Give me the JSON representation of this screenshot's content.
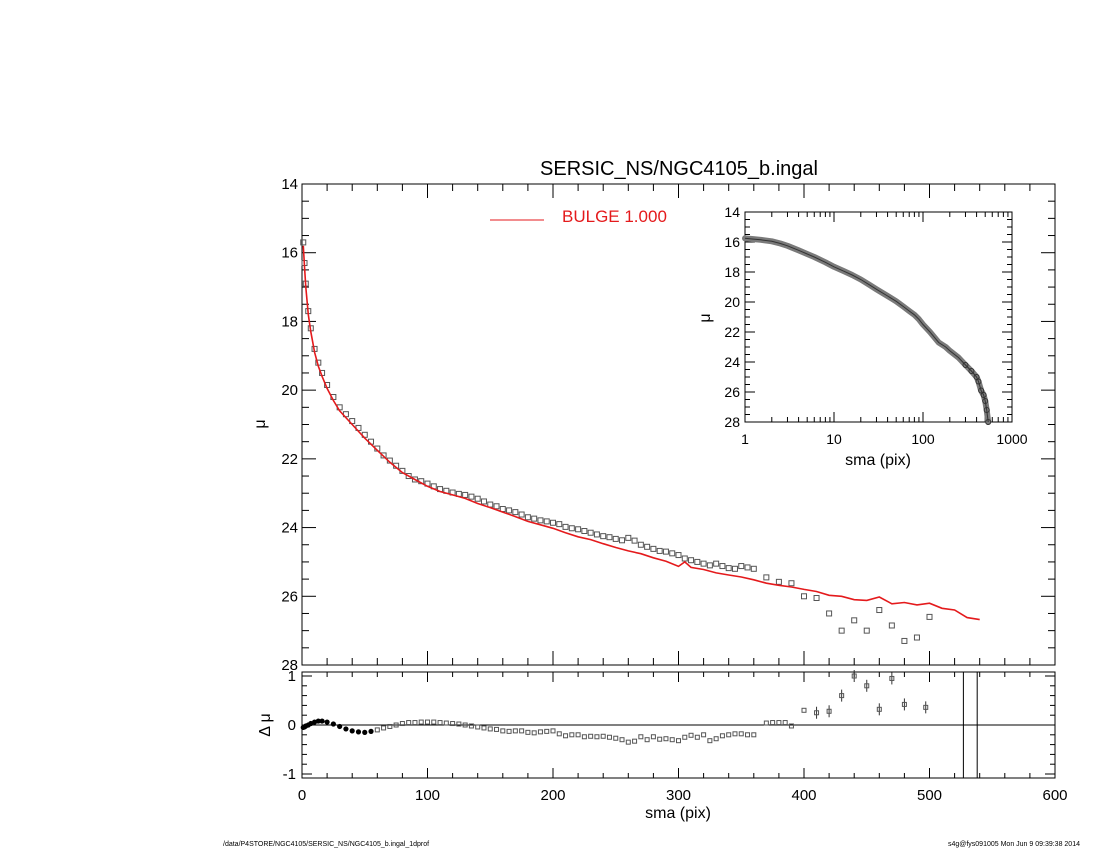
{
  "colors": {
    "model": "#e41a1c",
    "points": "#555555",
    "axes": "#000000"
  },
  "chart_data": [
    {
      "panel": "main",
      "type": "scatter",
      "title": "SERSIC_NS/NGC4105_b.ingal",
      "ylabel": "μ",
      "xlim": [
        0,
        600
      ],
      "ylim": [
        28,
        14
      ],
      "y_inverted": true,
      "yticks": [
        14,
        16,
        18,
        20,
        22,
        24,
        26,
        28
      ],
      "legend": {
        "label": "BULGE  1.000",
        "placement": "top-center"
      },
      "series": [
        {
          "name": "BULGE  1.000",
          "kind": "line",
          "x": [
            1,
            2,
            3,
            5,
            7,
            10,
            13,
            16,
            20,
            25,
            30,
            40,
            50,
            60,
            70,
            80,
            90,
            100,
            110,
            120,
            130,
            140,
            150,
            160,
            170,
            180,
            190,
            200,
            210,
            220,
            230,
            240,
            250,
            260,
            270,
            280,
            290,
            300,
            305,
            310,
            320,
            330,
            340,
            350,
            360,
            370,
            380,
            390,
            400,
            410,
            420,
            430,
            440,
            450,
            460,
            470,
            480,
            490,
            500,
            510,
            520,
            530,
            540
          ],
          "y": [
            15.8,
            16.4,
            17.0,
            17.8,
            18.3,
            18.9,
            19.3,
            19.6,
            19.95,
            20.3,
            20.6,
            21.0,
            21.4,
            21.75,
            22.1,
            22.4,
            22.6,
            22.8,
            22.95,
            23.05,
            23.15,
            23.3,
            23.42,
            23.55,
            23.68,
            23.82,
            23.92,
            24.02,
            24.15,
            24.27,
            24.35,
            24.47,
            24.58,
            24.68,
            24.76,
            24.88,
            24.98,
            25.13,
            25.0,
            25.16,
            25.22,
            25.32,
            25.38,
            25.44,
            25.52,
            25.62,
            25.68,
            25.73,
            25.8,
            25.86,
            25.97,
            26.0,
            26.1,
            26.12,
            26.02,
            26.22,
            26.18,
            26.25,
            26.2,
            26.35,
            26.4,
            26.62,
            26.68
          ]
        },
        {
          "name": "data",
          "kind": "points",
          "x": [
            1,
            2,
            3,
            5,
            7,
            10,
            13,
            16,
            20,
            25,
            30,
            35,
            40,
            45,
            50,
            55,
            60,
            65,
            70,
            75,
            80,
            85,
            90,
            95,
            100,
            105,
            110,
            115,
            120,
            125,
            130,
            135,
            140,
            145,
            150,
            155,
            160,
            165,
            170,
            175,
            180,
            185,
            190,
            195,
            200,
            205,
            210,
            215,
            220,
            225,
            230,
            235,
            240,
            245,
            250,
            255,
            260,
            265,
            270,
            275,
            280,
            285,
            290,
            295,
            300,
            305,
            310,
            315,
            320,
            325,
            330,
            335,
            340,
            345,
            350,
            355,
            360,
            370,
            380,
            390,
            400,
            410,
            420,
            430,
            440,
            450,
            460,
            470,
            480,
            490,
            500,
            510,
            520
          ],
          "y": [
            15.7,
            16.3,
            16.9,
            17.7,
            18.2,
            18.8,
            19.2,
            19.5,
            19.85,
            20.2,
            20.5,
            20.7,
            20.9,
            21.1,
            21.3,
            21.5,
            21.7,
            21.9,
            22.05,
            22.2,
            22.35,
            22.5,
            22.6,
            22.65,
            22.72,
            22.8,
            22.88,
            22.93,
            22.98,
            23.02,
            23.05,
            23.1,
            23.16,
            23.24,
            23.33,
            23.38,
            23.46,
            23.5,
            23.55,
            23.62,
            23.7,
            23.74,
            23.79,
            23.82,
            23.86,
            23.9,
            23.98,
            24.02,
            24.05,
            24.1,
            24.15,
            24.2,
            24.25,
            24.28,
            24.33,
            24.37,
            24.3,
            24.38,
            24.5,
            24.56,
            24.62,
            24.68,
            24.7,
            24.75,
            24.8,
            24.9,
            24.95,
            25.0,
            25.05,
            25.1,
            25.05,
            25.12,
            25.18,
            25.2,
            25.12,
            25.16,
            25.2,
            25.45,
            25.58,
            25.62,
            26.0,
            26.05,
            26.5,
            27.0,
            26.7,
            27.0,
            26.4,
            26.85,
            27.3,
            27.2,
            26.6,
            28.1,
            28.5
          ]
        }
      ]
    },
    {
      "panel": "inset",
      "type": "scatter",
      "xlabel": "sma (pix)",
      "ylabel": "μ",
      "x_scale": "log",
      "xlim": [
        1,
        1000
      ],
      "ylim": [
        28,
        14
      ],
      "y_inverted": true,
      "xticks": [
        1,
        10,
        100,
        1000
      ],
      "yticks": [
        14,
        16,
        18,
        20,
        22,
        24,
        26,
        28
      ],
      "series": [
        {
          "name": "data",
          "kind": "points",
          "x": [
            1,
            1.2,
            1.5,
            2,
            2.5,
            3,
            4,
            5,
            6,
            8,
            10,
            13,
            16,
            20,
            25,
            30,
            40,
            50,
            60,
            70,
            80,
            90,
            100,
            120,
            150,
            180,
            200,
            250,
            300,
            350,
            400,
            420,
            450,
            480,
            500,
            520,
            540
          ],
          "y": [
            15.75,
            15.8,
            15.85,
            15.95,
            16.1,
            16.25,
            16.55,
            16.8,
            17.0,
            17.35,
            17.65,
            17.95,
            18.2,
            18.5,
            18.85,
            19.15,
            19.6,
            19.95,
            20.3,
            20.6,
            20.85,
            21.15,
            21.5,
            22.0,
            22.7,
            23.0,
            23.25,
            23.7,
            24.2,
            24.6,
            25.0,
            25.3,
            25.9,
            26.2,
            26.6,
            27.2,
            28.0
          ]
        }
      ]
    },
    {
      "panel": "residual",
      "type": "scatter",
      "xlabel": "sma (pix)",
      "ylabel": "Δ μ",
      "xlim": [
        0,
        600
      ],
      "ylim": [
        -1,
        1
      ],
      "yticks": [
        -1,
        0,
        1
      ],
      "xticks": [
        0,
        100,
        200,
        300,
        400,
        500,
        600
      ],
      "reference_line_y": 0,
      "vertical_lines_x": [
        527,
        538
      ],
      "series": [
        {
          "name": "residual",
          "kind": "points",
          "x": [
            1,
            2,
            3,
            5,
            7,
            10,
            13,
            16,
            20,
            25,
            30,
            35,
            40,
            45,
            50,
            55,
            60,
            65,
            70,
            75,
            80,
            85,
            90,
            95,
            100,
            105,
            110,
            115,
            120,
            125,
            130,
            135,
            140,
            145,
            150,
            155,
            160,
            165,
            170,
            175,
            180,
            185,
            190,
            195,
            200,
            205,
            210,
            215,
            220,
            225,
            230,
            235,
            240,
            245,
            250,
            255,
            260,
            265,
            270,
            275,
            280,
            285,
            290,
            295,
            300,
            305,
            310,
            315,
            320,
            325,
            330,
            335,
            340,
            345,
            350,
            355,
            360,
            370,
            375,
            380,
            385,
            390,
            400,
            410,
            420,
            430,
            440,
            450,
            460,
            470,
            480,
            497
          ],
          "y": [
            -0.05,
            -0.04,
            -0.02,
            0.0,
            0.03,
            0.06,
            0.08,
            0.08,
            0.06,
            0.02,
            -0.03,
            -0.08,
            -0.12,
            -0.14,
            -0.15,
            -0.13,
            -0.1,
            -0.06,
            -0.03,
            0.0,
            0.03,
            0.05,
            0.05,
            0.06,
            0.06,
            0.06,
            0.05,
            0.04,
            0.03,
            0.02,
            0.0,
            -0.02,
            -0.04,
            -0.06,
            -0.08,
            -0.09,
            -0.12,
            -0.13,
            -0.12,
            -0.12,
            -0.15,
            -0.16,
            -0.14,
            -0.13,
            -0.12,
            -0.18,
            -0.22,
            -0.2,
            -0.2,
            -0.24,
            -0.23,
            -0.24,
            -0.23,
            -0.25,
            -0.27,
            -0.3,
            -0.35,
            -0.33,
            -0.24,
            -0.3,
            -0.24,
            -0.29,
            -0.28,
            -0.3,
            -0.32,
            -0.25,
            -0.21,
            -0.25,
            -0.2,
            -0.32,
            -0.28,
            -0.22,
            -0.2,
            -0.18,
            -0.18,
            -0.2,
            -0.2,
            0.04,
            0.05,
            0.05,
            0.05,
            -0.02,
            0.3,
            0.25,
            0.28,
            0.6,
            1.0,
            0.8,
            0.32,
            0.95,
            0.42,
            0.36
          ]
        }
      ]
    }
  ],
  "footer": {
    "left": "/data/P4STORE/NGC4105/SERSIC_NS/NGC4105_b.ingal_1dprof",
    "right": "s4g@fys091005  Mon Jun  9 09:39:38 2014"
  }
}
